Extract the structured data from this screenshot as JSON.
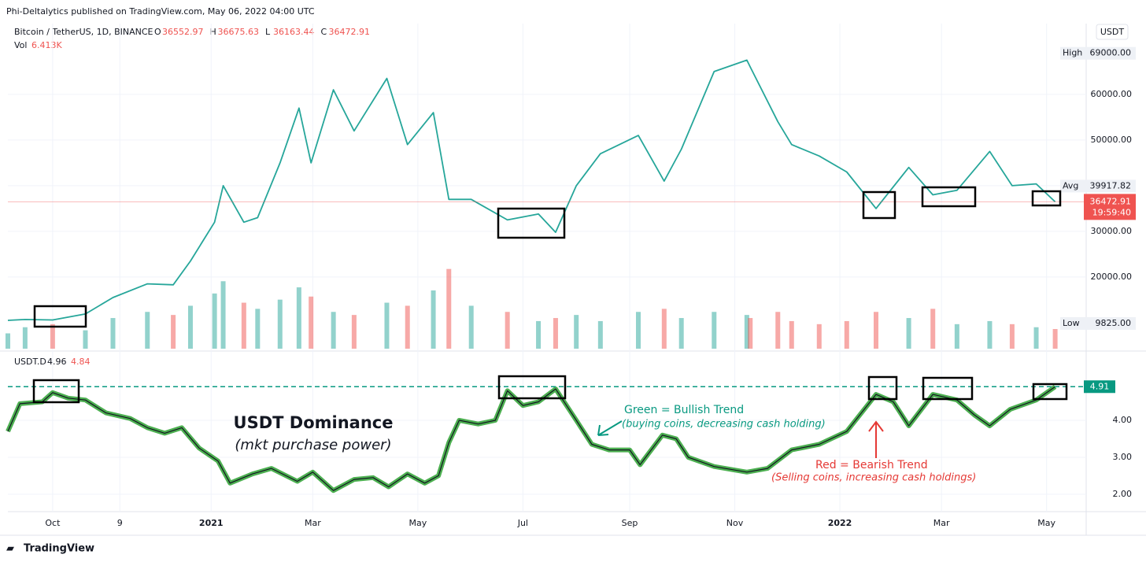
{
  "header": {
    "publisher": "Phi-Deltalytics published on TradingView.com, May 06, 2022 04:00 UTC",
    "brand": "TradingView"
  },
  "annotations": {
    "dominance_title": "USDT Dominance",
    "dominance_sub": "(mkt purchase power)",
    "green": "Green = Bullish Trend",
    "green_sub": "(buying coins, decreasing cash holding)",
    "red": "Red = Bearish Trend",
    "red_sub": "(Selling coins, increasing cash holdings)"
  },
  "chart_data": [
    {
      "type": "line",
      "title": "Bitcoin / TetherUS, 1D, BINANCE",
      "currency": "USDT",
      "legend": [
        {
          "label": "O",
          "value": "36552.97"
        },
        {
          "label": "H",
          "value": "36675.63"
        },
        {
          "label": "L",
          "value": "36163.44"
        },
        {
          "label": "C",
          "value": "36472.91"
        }
      ],
      "x": [
        "2020-09-05",
        "2020-09-15",
        "2020-10-01",
        "2020-10-20",
        "2020-11-05",
        "2020-11-25",
        "2020-12-10",
        "2020-12-20",
        "2021-01-03",
        "2021-01-08",
        "2021-01-20",
        "2021-01-28",
        "2021-02-10",
        "2021-02-21",
        "2021-02-28",
        "2021-03-13",
        "2021-03-25",
        "2021-04-13",
        "2021-04-25",
        "2021-05-10",
        "2021-05-19",
        "2021-06-01",
        "2021-06-22",
        "2021-07-10",
        "2021-07-20",
        "2021-08-01",
        "2021-08-15",
        "2021-09-06",
        "2021-09-21",
        "2021-10-01",
        "2021-10-20",
        "2021-11-08",
        "2021-11-10",
        "2021-11-26",
        "2021-12-04",
        "2021-12-20",
        "2022-01-05",
        "2022-01-22",
        "2022-02-10",
        "2022-02-24",
        "2022-03-10",
        "2022-03-29",
        "2022-04-11",
        "2022-04-25",
        "2022-05-06"
      ],
      "values": [
        10500,
        10700,
        10600,
        11900,
        15500,
        18500,
        18300,
        23500,
        32000,
        40000,
        32000,
        33000,
        45000,
        57000,
        45000,
        61000,
        52000,
        63500,
        49000,
        56000,
        37000,
        37000,
        32500,
        33800,
        29800,
        40000,
        47000,
        51000,
        41000,
        48000,
        65000,
        67500,
        66000,
        54000,
        49000,
        46500,
        43000,
        35000,
        44000,
        38000,
        39000,
        47500,
        40000,
        40400,
        36472.91
      ],
      "color": "#26a69a",
      "last_color": "#ef5350",
      "countdown": "19:59:40",
      "xlim": [
        "2020-09-05",
        "2022-05-24"
      ],
      "xticks": [
        {
          "value": "2020-10-01",
          "label": "Oct"
        },
        {
          "value": "2020-11-09",
          "label": "9"
        },
        {
          "value": "2021-01-01",
          "label": "2021"
        },
        {
          "value": "2021-03-01",
          "label": "Mar"
        },
        {
          "value": "2021-05-01",
          "label": "May"
        },
        {
          "value": "2021-07-01",
          "label": "Jul"
        },
        {
          "value": "2021-09-01",
          "label": "Sep"
        },
        {
          "value": "2021-11-01",
          "label": "Nov"
        },
        {
          "value": "2022-01-01",
          "label": "2022"
        },
        {
          "value": "2022-03-01",
          "label": "Mar"
        },
        {
          "value": "2022-05-01",
          "label": "May"
        }
      ],
      "ylim": [
        4300,
        75500
      ],
      "yticks": [
        {
          "value": 20000,
          "label": "20000.00"
        },
        {
          "value": 30000,
          "label": "30000.00"
        },
        {
          "value": 40000,
          "label": "40000.00"
        },
        {
          "value": 50000,
          "label": "50000.00"
        },
        {
          "value": 60000,
          "label": "60000.00"
        }
      ],
      "high": {
        "name": "High",
        "value": 69000,
        "label": "69000.00"
      },
      "low": {
        "name": "Low",
        "value": 9825,
        "label": "9825.00"
      },
      "avg": {
        "name": "Avg",
        "value": 39917.82,
        "label": "39917.82"
      },
      "grid": true
    },
    {
      "type": "bar",
      "title": "Vol",
      "legend_value": "6.413K",
      "values": [
        5,
        7,
        8,
        6,
        10,
        12,
        11,
        14,
        18,
        22,
        15,
        13,
        16,
        20,
        17,
        12,
        11,
        15,
        14,
        19,
        26,
        14,
        12,
        9,
        10,
        11,
        9,
        12,
        13,
        10,
        12,
        11,
        10,
        12,
        9,
        8,
        9,
        12,
        10,
        13,
        8,
        9,
        8,
        7,
        6.413
      ],
      "up_color": "#26a69a",
      "down_color": "#ef5350",
      "ylim": [
        0,
        106
      ]
    },
    {
      "type": "line",
      "title": "USDT.D",
      "legend": [
        "4.96",
        "4.84"
      ],
      "x": [
        "2020-09-05",
        "2020-09-12",
        "2020-09-25",
        "2020-10-01",
        "2020-10-10",
        "2020-10-20",
        "2020-11-01",
        "2020-11-15",
        "2020-11-25",
        "2020-12-05",
        "2020-12-15",
        "2020-12-25",
        "2021-01-05",
        "2021-01-12",
        "2021-01-25",
        "2021-02-05",
        "2021-02-20",
        "2021-03-01",
        "2021-03-13",
        "2021-03-25",
        "2021-04-05",
        "2021-04-14",
        "2021-04-25",
        "2021-05-05",
        "2021-05-13",
        "2021-05-19",
        "2021-05-25",
        "2021-06-05",
        "2021-06-15",
        "2021-06-22",
        "2021-07-01",
        "2021-07-10",
        "2021-07-20",
        "2021-08-01",
        "2021-08-10",
        "2021-08-20",
        "2021-09-01",
        "2021-09-07",
        "2021-09-20",
        "2021-09-28",
        "2021-10-05",
        "2021-10-20",
        "2021-11-08",
        "2021-11-20",
        "2021-12-04",
        "2021-12-20",
        "2022-01-05",
        "2022-01-22",
        "2022-02-01",
        "2022-02-10",
        "2022-02-24",
        "2022-03-10",
        "2022-03-20",
        "2022-03-29",
        "2022-04-10",
        "2022-04-25",
        "2022-05-06"
      ],
      "values": [
        3.7,
        4.45,
        4.5,
        4.75,
        4.6,
        4.55,
        4.2,
        4.05,
        3.8,
        3.65,
        3.8,
        3.25,
        2.9,
        2.3,
        2.55,
        2.7,
        2.35,
        2.6,
        2.1,
        2.4,
        2.45,
        2.2,
        2.55,
        2.3,
        2.5,
        3.4,
        4.0,
        3.9,
        4.0,
        4.8,
        4.4,
        4.5,
        4.85,
        4.0,
        3.35,
        3.2,
        3.2,
        2.8,
        3.6,
        3.5,
        3.0,
        2.75,
        2.6,
        2.7,
        3.2,
        3.35,
        3.7,
        4.7,
        4.5,
        3.85,
        4.7,
        4.55,
        4.15,
        3.85,
        4.3,
        4.55,
        4.91
      ],
      "color": "#131722",
      "ribbon_color": "#4caf50",
      "last_color": "#089981",
      "ylim": [
        1.53,
        5.81
      ],
      "yticks": [
        {
          "value": 2,
          "label": "2.00"
        },
        {
          "value": 3,
          "label": "3.00"
        },
        {
          "value": 4,
          "label": "4.00"
        }
      ],
      "grid": true
    }
  ]
}
